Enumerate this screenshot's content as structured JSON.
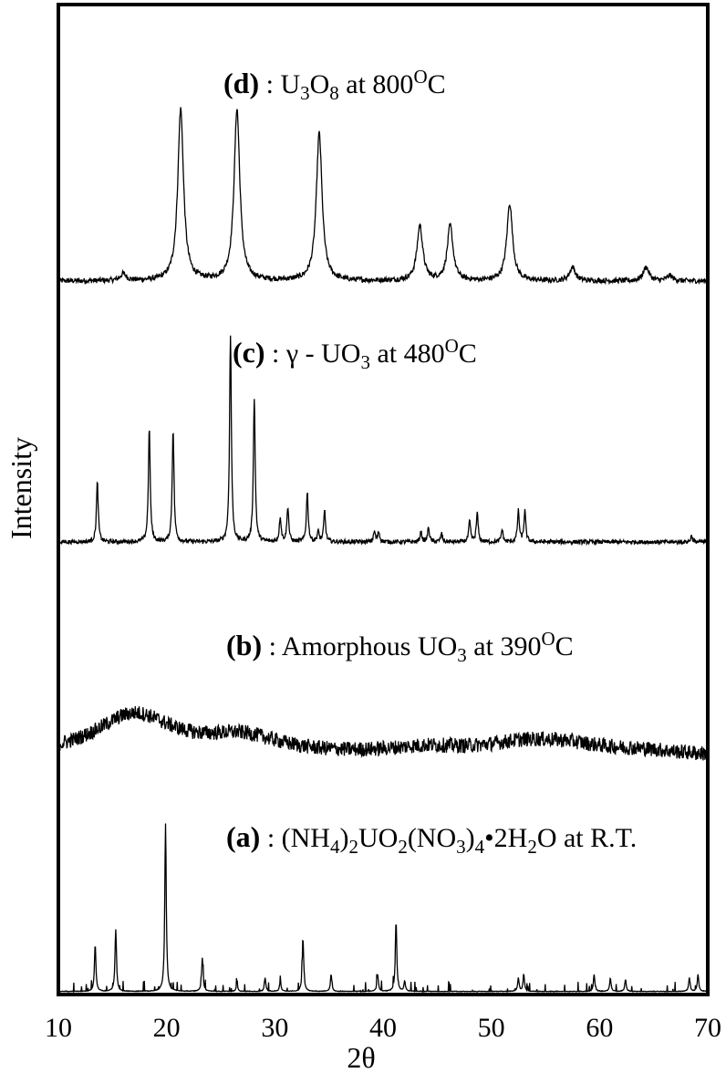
{
  "chart_data": {
    "type": "line",
    "title": "",
    "xlabel": "2θ",
    "ylabel": "Intensity",
    "xlim": [
      10,
      70
    ],
    "xticks": [
      "10",
      "20",
      "30",
      "40",
      "50",
      "60",
      "70"
    ],
    "grid": false,
    "series": [
      {
        "id": "d",
        "letter": "(d)",
        "parts": [
          {
            "t": " : U"
          },
          {
            "t": "3",
            "sub": true
          },
          {
            "t": "O"
          },
          {
            "t": "8",
            "sub": true
          },
          {
            "t": " at 800"
          },
          {
            "t": "O",
            "sup": true
          },
          {
            "t": "C"
          }
        ],
        "peak_width": 0.32,
        "noise": 0.015,
        "peaks": [
          [
            16.0,
            0.04
          ],
          [
            21.3,
            1.0
          ],
          [
            26.5,
            1.0
          ],
          [
            34.1,
            0.86
          ],
          [
            43.4,
            0.32
          ],
          [
            46.2,
            0.32
          ],
          [
            51.7,
            0.45
          ],
          [
            57.5,
            0.08
          ],
          [
            64.3,
            0.08
          ],
          [
            66.5,
            0.03
          ]
        ]
      },
      {
        "id": "c",
        "letter": "(c)",
        "parts": [
          {
            "t": " : γ - UO"
          },
          {
            "t": "3",
            "sub": true
          },
          {
            "t": " at 480"
          },
          {
            "t": "O",
            "sup": true
          },
          {
            "t": "C"
          }
        ],
        "peak_width": 0.1,
        "noise": 0.01,
        "peaks": [
          [
            13.6,
            0.29
          ],
          [
            18.4,
            0.55
          ],
          [
            20.6,
            0.55
          ],
          [
            25.9,
            1.0
          ],
          [
            28.1,
            0.7
          ],
          [
            30.5,
            0.12
          ],
          [
            31.2,
            0.17
          ],
          [
            33.0,
            0.24
          ],
          [
            34.0,
            0.05
          ],
          [
            34.6,
            0.15
          ],
          [
            39.2,
            0.05
          ],
          [
            39.6,
            0.05
          ],
          [
            43.5,
            0.05
          ],
          [
            44.2,
            0.07
          ],
          [
            45.4,
            0.04
          ],
          [
            48.0,
            0.1
          ],
          [
            48.7,
            0.14
          ],
          [
            51.0,
            0.06
          ],
          [
            52.5,
            0.15
          ],
          [
            53.1,
            0.15
          ],
          [
            68.5,
            0.03
          ]
        ]
      },
      {
        "id": "b",
        "letter": "(b)",
        "parts": [
          {
            "t": " : Amorphous UO"
          },
          {
            "t": "3",
            "sub": true
          },
          {
            "t": " at 390"
          },
          {
            "t": "O",
            "sup": true
          },
          {
            "t": "C"
          }
        ],
        "peak_width": 4.5,
        "noise": 0.11,
        "peaks": [
          [
            17.0,
            0.6
          ],
          [
            27.0,
            0.25
          ],
          [
            44.0,
            0.1
          ],
          [
            53.0,
            0.15
          ],
          [
            57.0,
            0.12
          ],
          [
            64.0,
            0.06
          ]
        ]
      },
      {
        "id": "a",
        "letter": "(a)",
        "parts": [
          {
            "t": " : (NH"
          },
          {
            "t": "4",
            "sub": true
          },
          {
            "t": ")"
          },
          {
            "t": "2",
            "sub": true
          },
          {
            "t": "UO"
          },
          {
            "t": "2",
            "sub": true
          },
          {
            "t": "(NO"
          },
          {
            "t": "3",
            "sub": true
          },
          {
            "t": ")"
          },
          {
            "t": "4",
            "sub": true
          },
          {
            "t": "•2H"
          },
          {
            "t": "2",
            "sub": true
          },
          {
            "t": "O at R.T."
          }
        ],
        "peak_width": 0.08,
        "noise": 0.004,
        "peaks": [
          [
            13.4,
            0.28
          ],
          [
            15.3,
            0.37
          ],
          [
            19.9,
            1.0
          ],
          [
            23.3,
            0.2
          ],
          [
            26.5,
            0.05
          ],
          [
            29.1,
            0.08
          ],
          [
            30.5,
            0.06
          ],
          [
            32.6,
            0.32
          ],
          [
            35.2,
            0.1
          ],
          [
            39.5,
            0.1
          ],
          [
            41.2,
            0.42
          ],
          [
            42.0,
            0.06
          ],
          [
            52.5,
            0.08
          ],
          [
            53.0,
            0.1
          ],
          [
            59.5,
            0.1
          ],
          [
            61.0,
            0.08
          ],
          [
            62.4,
            0.07
          ],
          [
            68.3,
            0.08
          ],
          [
            69.1,
            0.1
          ]
        ]
      }
    ]
  }
}
